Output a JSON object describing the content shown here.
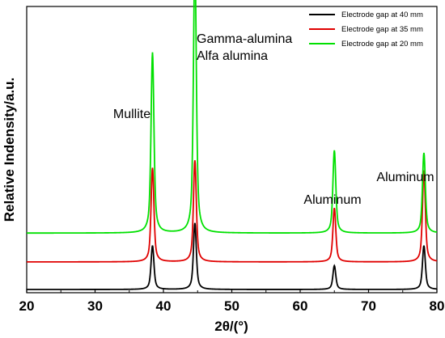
{
  "chart_data": {
    "type": "line",
    "xlabel": "2θ/(°)",
    "ylabel": "Relative Indensity/a.u.",
    "xlim": [
      20,
      80
    ],
    "xticks": [
      20,
      30,
      40,
      50,
      60,
      70,
      80
    ],
    "yticks_shown": false,
    "grid": false,
    "legend_position": "top-right",
    "legend": [
      {
        "label": "Electrode gap at 40 mm",
        "color": "#000000"
      },
      {
        "label": "Electrode gap at 35 mm",
        "color": "#e00000"
      },
      {
        "label": "Electrode gap at 20 mm",
        "color": "#00e000"
      }
    ],
    "annotations": [
      {
        "text": "Mullite",
        "x": 38.5
      },
      {
        "text": "Gamma-alumina",
        "x": 44.7
      },
      {
        "text": "Alfa alumina",
        "x": 44.7
      },
      {
        "text": "Aluminum",
        "x": 65.0
      },
      {
        "text": "Aluminum",
        "x": 78.0
      }
    ],
    "series": [
      {
        "name": "Electrode gap at 40 mm",
        "color": "#000000",
        "baseline": 0.0,
        "peaks": [
          [
            38.4,
            17.5
          ],
          [
            44.6,
            26.5
          ],
          [
            65.0,
            9.5
          ],
          [
            78.1,
            17.5
          ]
        ]
      },
      {
        "name": "Electrode gap at 35 mm",
        "color": "#e00000",
        "baseline": 11.0,
        "peaks": [
          [
            38.4,
            37.5
          ],
          [
            44.6,
            40.5
          ],
          [
            65.0,
            21.5
          ],
          [
            78.1,
            36.5
          ]
        ]
      },
      {
        "name": "Electrode gap at 20 mm",
        "color": "#00e000",
        "baseline": 22.5,
        "peaks": [
          [
            38.4,
            72.0
          ],
          [
            44.6,
            110.0
          ],
          [
            65.0,
            33.0
          ],
          [
            78.1,
            32.0
          ]
        ]
      }
    ],
    "units_note": "y values in relative intensity (arbitrary units)"
  }
}
